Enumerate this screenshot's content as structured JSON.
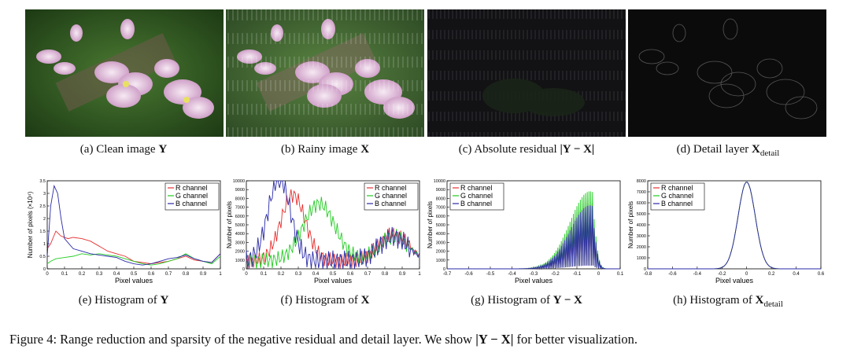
{
  "panels": [
    {
      "id": "a",
      "caption_prefix": "(a)  Clean image ",
      "caption_math": "Y",
      "caption_sub": ""
    },
    {
      "id": "b",
      "caption_prefix": "(b)  Rainy image ",
      "caption_math": "X",
      "caption_sub": ""
    },
    {
      "id": "c",
      "caption_prefix": "(c)  Absolute residual ",
      "caption_math": "|Y − X|",
      "caption_sub": ""
    },
    {
      "id": "d",
      "caption_prefix": "(d)  Detail layer ",
      "caption_math": "X",
      "caption_sub": "detail"
    }
  ],
  "plot_captions": [
    {
      "prefix": "(e)  Histogram of ",
      "math": "Y",
      "sub": ""
    },
    {
      "prefix": "(f)  Histogram of ",
      "math": "X",
      "sub": ""
    },
    {
      "prefix": "(g)  Histogram of ",
      "math": "Y − X",
      "sub": ""
    },
    {
      "prefix": "(h)  Histogram of ",
      "math": "X",
      "sub": "detail"
    }
  ],
  "figure_caption": {
    "label": "Figure 4: ",
    "text_before": "Range reduction and sparsity of the negative residual and detail layer. We show ",
    "math": "|Y − X|",
    "text_after": " for better visualization."
  },
  "colors": {
    "r": "#e53030",
    "g": "#22cc22",
    "b": "#2a2aa8"
  },
  "chart_data": [
    {
      "type": "line",
      "id": "e",
      "xlabel": "Pixel values",
      "ylabel": "Number of pixels (×10⁴)",
      "xlim": [
        0,
        1
      ],
      "ylim": [
        0,
        3.5
      ],
      "xticks": [
        "0",
        "0.1",
        "0.2",
        "0.3",
        "0.4",
        "0.5",
        "0.6",
        "0.7",
        "0.8",
        "0.9",
        "1"
      ],
      "yticks": [
        "0",
        "0.5",
        "1",
        "1.5",
        "2",
        "2.5",
        "3",
        "3.5"
      ],
      "legend": [
        "R channel",
        "G channel",
        "B channel"
      ],
      "series": [
        {
          "name": "R channel",
          "x": [
            0,
            0.02,
            0.05,
            0.08,
            0.12,
            0.15,
            0.2,
            0.25,
            0.3,
            0.35,
            0.4,
            0.45,
            0.5,
            0.55,
            0.6,
            0.65,
            0.7,
            0.75,
            0.8,
            0.85,
            0.9,
            0.95,
            1.0
          ],
          "y": [
            0.8,
            1.0,
            1.5,
            1.3,
            1.2,
            1.25,
            1.2,
            1.1,
            0.9,
            0.7,
            0.6,
            0.5,
            0.3,
            0.25,
            0.2,
            0.25,
            0.3,
            0.4,
            0.5,
            0.35,
            0.3,
            0.25,
            0.6
          ]
        },
        {
          "name": "G channel",
          "x": [
            0,
            0.02,
            0.05,
            0.1,
            0.15,
            0.2,
            0.25,
            0.3,
            0.35,
            0.4,
            0.45,
            0.5,
            0.55,
            0.6,
            0.65,
            0.7,
            0.75,
            0.8,
            0.85,
            0.9,
            0.95,
            1.0
          ],
          "y": [
            0.2,
            0.3,
            0.4,
            0.45,
            0.5,
            0.6,
            0.55,
            0.6,
            0.55,
            0.5,
            0.4,
            0.3,
            0.2,
            0.15,
            0.2,
            0.3,
            0.4,
            0.6,
            0.4,
            0.3,
            0.2,
            0.5
          ]
        },
        {
          "name": "B channel",
          "x": [
            0,
            0.02,
            0.04,
            0.06,
            0.08,
            0.1,
            0.15,
            0.2,
            0.25,
            0.3,
            0.35,
            0.4,
            0.45,
            0.5,
            0.55,
            0.6,
            0.65,
            0.7,
            0.75,
            0.8,
            0.85,
            0.9,
            0.95,
            1.0
          ],
          "y": [
            0.5,
            2.5,
            3.3,
            3.0,
            2.0,
            1.2,
            0.8,
            0.7,
            0.6,
            0.55,
            0.5,
            0.45,
            0.3,
            0.2,
            0.15,
            0.2,
            0.3,
            0.4,
            0.45,
            0.55,
            0.4,
            0.3,
            0.25,
            0.6
          ]
        }
      ]
    },
    {
      "type": "line",
      "id": "f",
      "xlabel": "Pixel values",
      "ylabel": "Number of pixels",
      "xlim": [
        0,
        1
      ],
      "ylim": [
        0,
        10000
      ],
      "xticks": [
        "0",
        "0.1",
        "0.2",
        "0.3",
        "0.4",
        "0.5",
        "0.6",
        "0.7",
        "0.8",
        "0.9",
        "1"
      ],
      "yticks": [
        "0",
        "1000",
        "2000",
        "3000",
        "4000",
        "5000",
        "6000",
        "7000",
        "8000",
        "9000",
        "10000"
      ],
      "legend": [
        "R channel",
        "G channel",
        "B channel"
      ],
      "series": [
        {
          "name": "R channel",
          "center": 0.27,
          "width": 0.1,
          "peak": 7500,
          "tail": 3000,
          "wiggle": 900
        },
        {
          "name": "G channel",
          "center": 0.42,
          "width": 0.13,
          "peak": 6500,
          "tail": 2800,
          "wiggle": 900
        },
        {
          "name": "B channel",
          "center": 0.19,
          "width": 0.09,
          "peak": 9500,
          "tail": 2700,
          "wiggle": 1200
        }
      ]
    },
    {
      "type": "line",
      "id": "g",
      "xlabel": "Pixel values",
      "ylabel": "Number of pixels",
      "xlim": [
        -0.7,
        0.1
      ],
      "ylim": [
        0,
        10000
      ],
      "xticks": [
        "-0.7",
        "-0.6",
        "-0.5",
        "-0.4",
        "-0.3",
        "-0.2",
        "-0.1",
        "0",
        "0.1"
      ],
      "yticks": [
        "0",
        "1000",
        "2000",
        "3000",
        "4000",
        "5000",
        "6000",
        "7000",
        "8000",
        "9000",
        "10000"
      ],
      "legend": [
        "R channel",
        "G channel",
        "B channel"
      ],
      "series": [
        {
          "name": "R channel",
          "peak": 7500
        },
        {
          "name": "G channel",
          "peak": 8800
        },
        {
          "name": "B channel",
          "peak": 7200
        }
      ]
    },
    {
      "type": "line",
      "id": "h",
      "xlabel": "Pixel values",
      "ylabel": "Number of pixels",
      "xlim": [
        -0.8,
        0.6
      ],
      "ylim": [
        0,
        8000
      ],
      "xticks": [
        "-0.8",
        "-0.6",
        "-0.4",
        "-0.2",
        "0",
        "0.2",
        "0.4",
        "0.6"
      ],
      "yticks": [
        "0",
        "1000",
        "2000",
        "3000",
        "4000",
        "5000",
        "6000",
        "7000",
        "8000"
      ],
      "legend": [
        "R channel",
        "G channel",
        "B channel"
      ],
      "series": [
        {
          "name": "R channel",
          "peak": 7900,
          "sigma": 0.07
        },
        {
          "name": "G channel",
          "peak": 7900,
          "sigma": 0.07
        },
        {
          "name": "B channel",
          "peak": 7900,
          "sigma": 0.07
        }
      ]
    }
  ]
}
